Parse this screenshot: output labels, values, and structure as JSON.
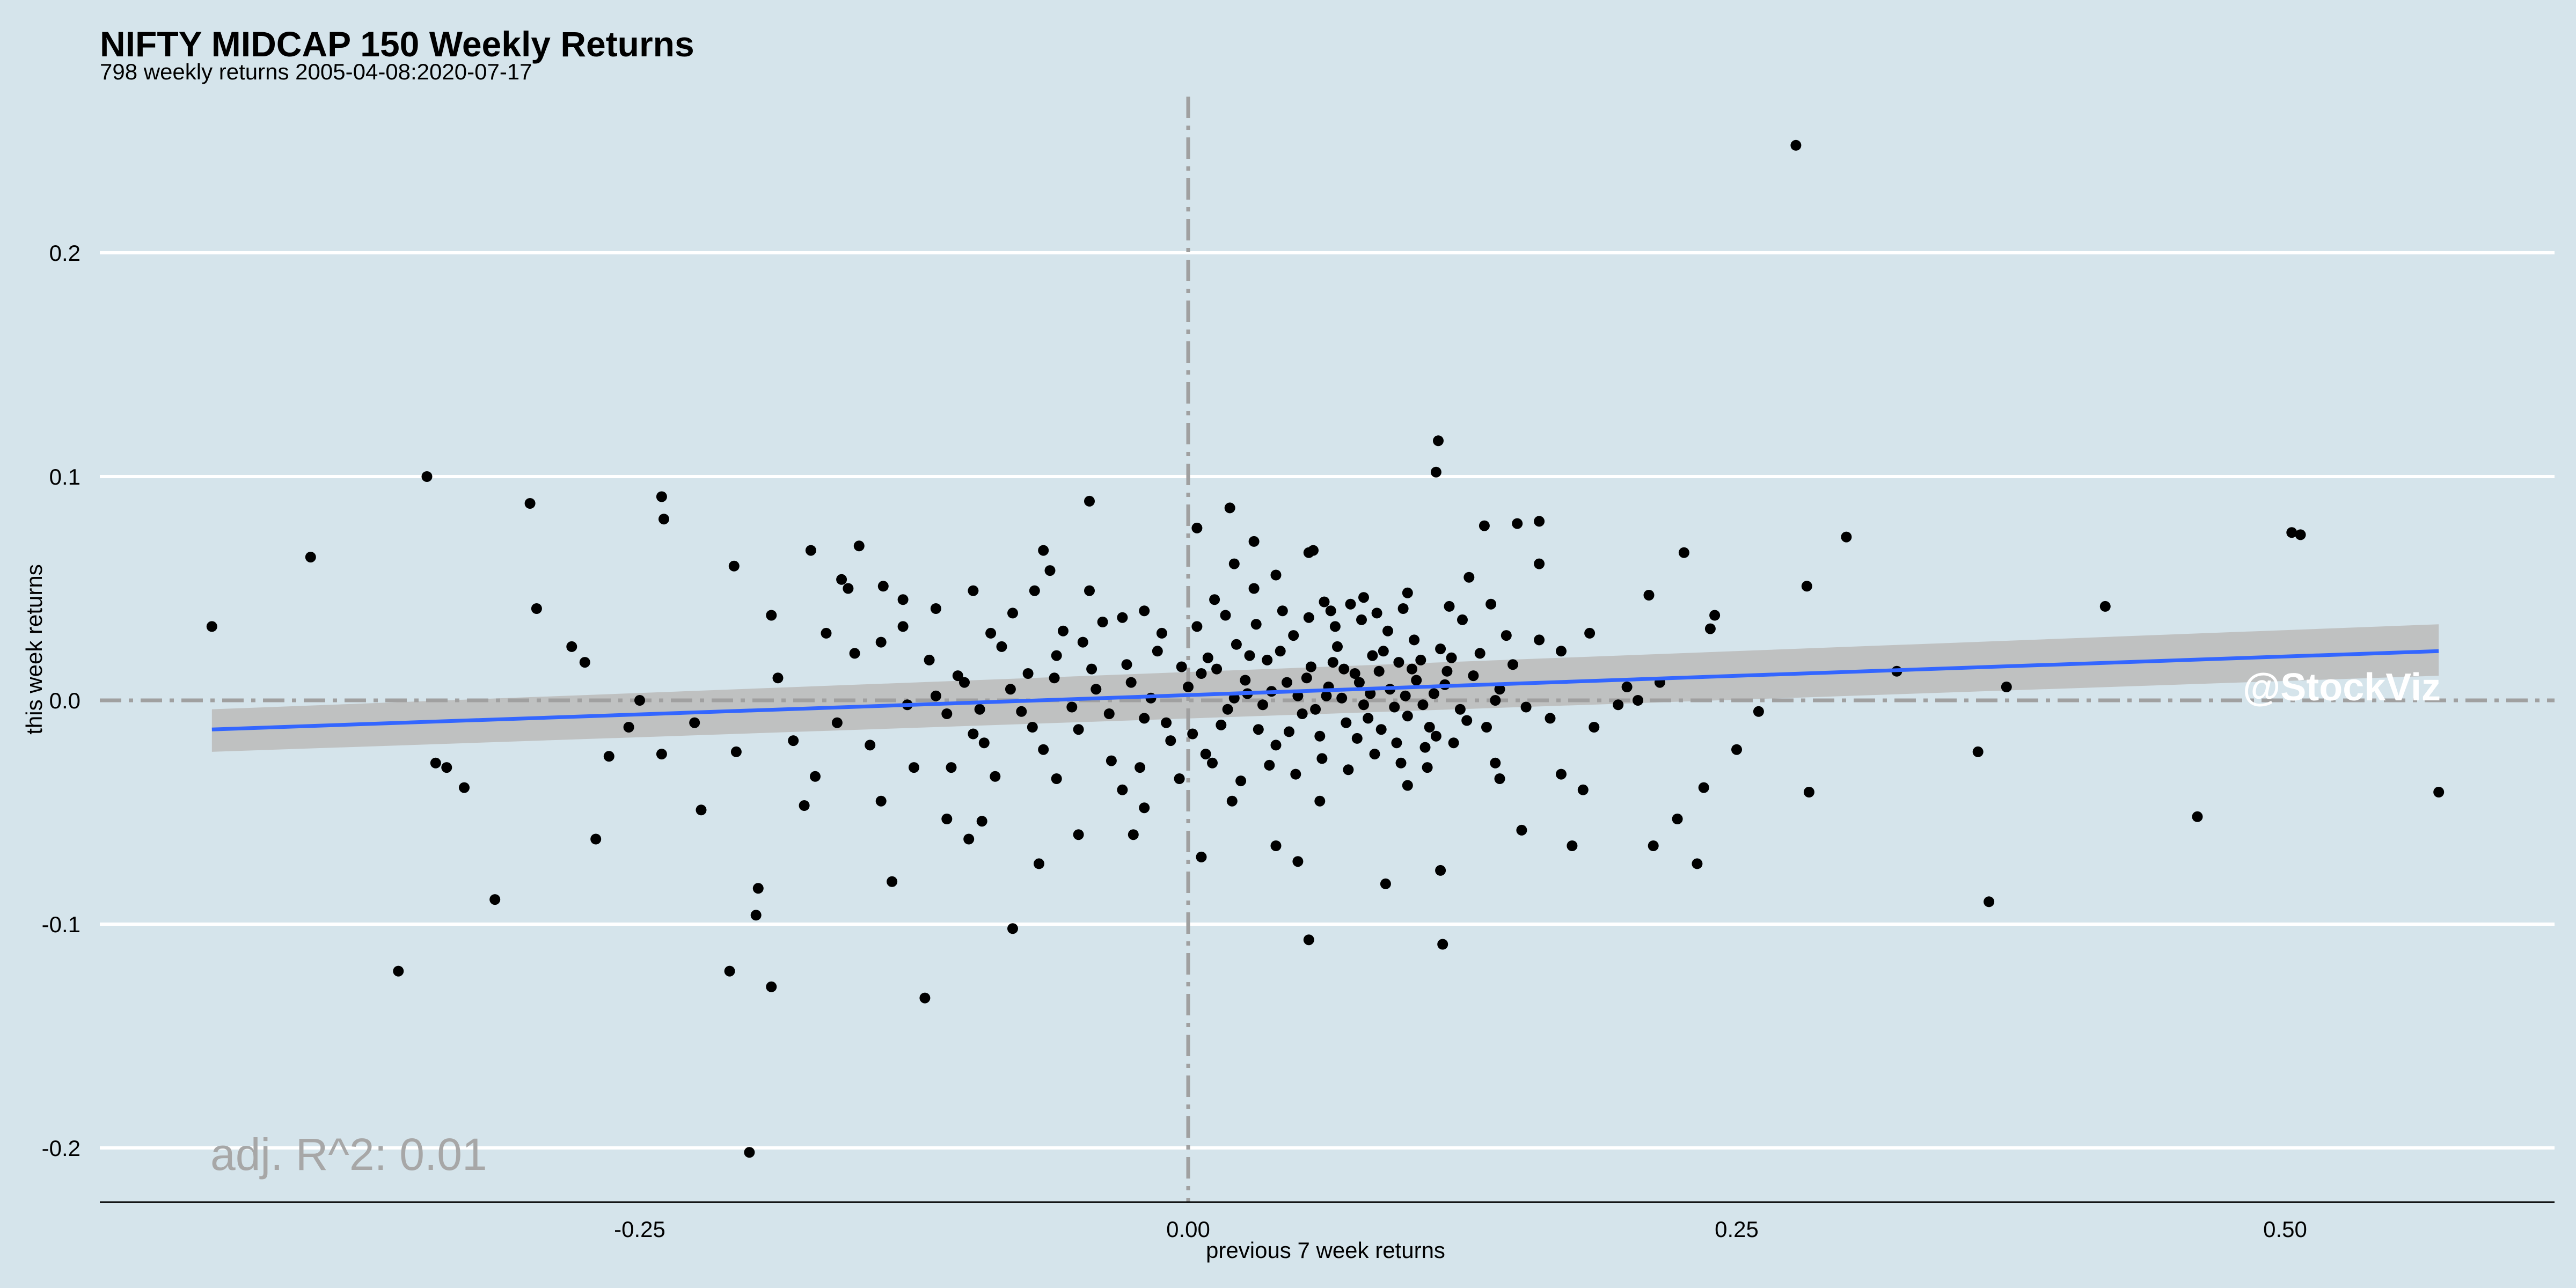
{
  "title": "NIFTY MIDCAP 150 Weekly Returns",
  "subtitle": "798 weekly returns 2005-04-08:2020-07-17",
  "annotation": "adj. R^2: 0.01",
  "watermark": "@StockViz",
  "colors": {
    "background": "#d5e4eb",
    "points": "#000000",
    "regression": "#3366ff",
    "confidence": "#bdbdbd",
    "zero_lines": "#a0a0a0",
    "grid": "#ffffff"
  },
  "chart_data": {
    "type": "scatter",
    "title": "NIFTY MIDCAP 150 Weekly Returns",
    "subtitle": "798 weekly returns 2005-04-08:2020-07-17",
    "xlabel": "previous 7 week returns",
    "ylabel": "this week returns",
    "xlim": [
      -0.5,
      0.62
    ],
    "ylim": [
      -0.225,
      0.27
    ],
    "x_ticks": [
      -0.25,
      0.0,
      0.25,
      0.5
    ],
    "x_tick_labels": [
      "-0.25",
      "0.00",
      "0.25",
      "0.50"
    ],
    "y_ticks": [
      -0.2,
      -0.1,
      0.0,
      0.1,
      0.2
    ],
    "y_tick_labels": [
      "-0.2",
      "-0.1",
      "0.0",
      "0.1",
      "0.2"
    ],
    "grid": "horizontal major lines",
    "reference_lines": {
      "x": 0,
      "y": 0
    },
    "regression": {
      "x_range": [
        -0.445,
        0.57
      ],
      "y_at_start": -0.013,
      "y_at_end": 0.022,
      "ci_start": [
        -0.023,
        -0.004
      ],
      "ci_end": [
        0.011,
        0.034
      ]
    },
    "adj_r2": 0.01,
    "points": [
      [
        0.277,
        0.248
      ],
      [
        -0.347,
        0.1
      ],
      [
        -0.4,
        0.064
      ],
      [
        -0.445,
        0.033
      ],
      [
        -0.3,
        0.088
      ],
      [
        -0.24,
        0.091
      ],
      [
        -0.239,
        0.081
      ],
      [
        0.114,
        0.116
      ],
      [
        0.113,
        0.102
      ],
      [
        0.503,
        0.075
      ],
      [
        0.507,
        0.074
      ],
      [
        0.3,
        0.073
      ],
      [
        -0.045,
        0.089
      ],
      [
        0.019,
        0.086
      ],
      [
        0.004,
        0.077
      ],
      [
        -0.36,
        -0.121
      ],
      [
        -0.316,
        -0.089
      ],
      [
        -0.209,
        -0.121
      ],
      [
        -0.19,
        -0.128
      ],
      [
        -0.2,
        -0.202
      ],
      [
        -0.12,
        -0.133
      ],
      [
        -0.08,
        -0.102
      ],
      [
        0.055,
        -0.107
      ],
      [
        0.116,
        -0.109
      ],
      [
        0.365,
        -0.09
      ],
      [
        0.46,
        -0.052
      ],
      [
        0.57,
        -0.041
      ],
      [
        0.418,
        0.042
      ],
      [
        0.36,
        -0.023
      ],
      [
        0.373,
        0.006
      ],
      [
        -0.196,
        -0.084
      ],
      [
        -0.197,
        -0.096
      ],
      [
        -0.27,
        -0.062
      ],
      [
        -0.222,
        -0.049
      ],
      [
        -0.343,
        -0.028
      ],
      [
        -0.338,
        -0.03
      ],
      [
        -0.33,
        -0.039
      ],
      [
        -0.297,
        0.041
      ],
      [
        -0.281,
        0.024
      ],
      [
        -0.275,
        0.017
      ],
      [
        -0.207,
        0.06
      ],
      [
        -0.172,
        0.067
      ],
      [
        -0.15,
        0.069
      ],
      [
        -0.139,
        0.051
      ],
      [
        -0.187,
        0.01
      ],
      [
        -0.19,
        0.038
      ],
      [
        -0.264,
        -0.025
      ],
      [
        -0.24,
        -0.024
      ],
      [
        -0.206,
        -0.023
      ],
      [
        -0.175,
        -0.047
      ],
      [
        -0.135,
        -0.081
      ],
      [
        0.15,
        0.079
      ],
      [
        0.16,
        0.08
      ],
      [
        0.16,
        0.061
      ],
      [
        0.226,
        0.066
      ],
      [
        0.282,
        0.051
      ],
      [
        0.21,
        0.047
      ],
      [
        0.24,
        0.038
      ],
      [
        0.238,
        0.032
      ],
      [
        0.17,
        0.022
      ],
      [
        0.183,
        0.03
      ],
      [
        0.323,
        0.013
      ],
      [
        0.26,
        -0.005
      ],
      [
        0.25,
        -0.022
      ],
      [
        0.235,
        -0.039
      ],
      [
        0.223,
        -0.053
      ],
      [
        0.232,
        -0.073
      ],
      [
        0.212,
        -0.065
      ],
      [
        0.283,
        -0.041
      ],
      [
        0.175,
        -0.065
      ],
      [
        0.152,
        -0.058
      ],
      [
        0.142,
        -0.035
      ],
      [
        0.09,
        -0.082
      ],
      [
        0.115,
        -0.076
      ],
      [
        0.05,
        -0.072
      ],
      [
        0.04,
        -0.065
      ],
      [
        0.006,
        -0.07
      ],
      [
        -0.025,
        -0.06
      ],
      [
        -0.05,
        -0.06
      ],
      [
        -0.068,
        -0.073
      ],
      [
        -0.094,
        -0.054
      ],
      [
        -0.11,
        -0.053
      ],
      [
        0.021,
        0.061
      ],
      [
        0.03,
        0.071
      ],
      [
        0.055,
        0.066
      ],
      [
        0.057,
        0.067
      ],
      [
        0.135,
        0.078
      ],
      [
        0.128,
        0.055
      ],
      [
        -0.098,
        0.049
      ],
      [
        -0.063,
        0.058
      ],
      [
        -0.066,
        0.067
      ],
      [
        -0.115,
        0.041
      ],
      [
        -0.155,
        0.05
      ],
      [
        -0.158,
        0.054
      ],
      [
        -0.13,
        0.033
      ],
      [
        -0.08,
        0.039
      ],
      [
        -0.045,
        0.049
      ],
      [
        0.1,
        0.048
      ],
      [
        0.08,
        0.046
      ],
      [
        0.065,
        0.04
      ],
      [
        0.04,
        0.056
      ],
      [
        0.03,
        0.05
      ],
      [
        0.012,
        0.045
      ],
      [
        -0.02,
        0.04
      ],
      [
        -0.03,
        0.037
      ],
      [
        0.185,
        -0.012
      ],
      [
        0.2,
        0.006
      ],
      [
        0.205,
        0.0
      ],
      [
        0.215,
        0.008
      ],
      [
        0.196,
        -0.002
      ],
      [
        0.18,
        -0.04
      ],
      [
        0.17,
        -0.033
      ],
      [
        -0.255,
        -0.012
      ],
      [
        -0.25,
        0.0
      ],
      [
        -0.225,
        -0.01
      ],
      [
        -0.16,
        -0.01
      ],
      [
        -0.145,
        -0.02
      ],
      [
        -0.128,
        -0.002
      ],
      [
        -0.115,
        0.002
      ],
      [
        -0.108,
        -0.03
      ],
      [
        -0.098,
        -0.015
      ],
      [
        -0.088,
        -0.034
      ],
      [
        -0.073,
        0.012
      ],
      [
        -0.06,
        0.02
      ],
      [
        -0.05,
        -0.013
      ],
      [
        -0.042,
        0.005
      ],
      [
        -0.035,
        -0.027
      ],
      [
        -0.028,
        0.016
      ],
      [
        -0.02,
        -0.008
      ],
      [
        -0.014,
        0.022
      ],
      [
        -0.008,
        -0.018
      ],
      [
        0.0,
        0.006
      ],
      [
        0.008,
        -0.024
      ],
      [
        0.013,
        0.014
      ],
      [
        0.018,
        -0.004
      ],
      [
        0.022,
        0.025
      ],
      [
        0.027,
        0.003
      ],
      [
        0.032,
        -0.013
      ],
      [
        0.036,
        0.018
      ],
      [
        0.04,
        -0.02
      ],
      [
        0.045,
        0.008
      ],
      [
        0.048,
        0.029
      ],
      [
        0.052,
        -0.006
      ],
      [
        0.056,
        0.015
      ],
      [
        0.06,
        -0.016
      ],
      [
        0.064,
        0.006
      ],
      [
        0.068,
        0.024
      ],
      [
        0.072,
        -0.01
      ],
      [
        0.076,
        0.012
      ],
      [
        0.08,
        -0.002
      ],
      [
        0.084,
        0.02
      ],
      [
        0.088,
        -0.013
      ],
      [
        0.092,
        0.005
      ],
      [
        0.096,
        0.017
      ],
      [
        0.1,
        -0.007
      ],
      [
        0.104,
        0.009
      ],
      [
        0.108,
        -0.021
      ],
      [
        0.112,
        0.003
      ],
      [
        0.118,
        0.013
      ],
      [
        0.124,
        -0.004
      ],
      [
        0.13,
        0.011
      ],
      [
        0.136,
        -0.012
      ],
      [
        0.142,
        0.005
      ],
      [
        0.148,
        0.016
      ],
      [
        0.154,
        -0.003
      ],
      [
        -0.085,
        0.024
      ],
      [
        -0.076,
        -0.005
      ],
      [
        -0.066,
        -0.022
      ],
      [
        -0.057,
        0.031
      ],
      [
        -0.048,
        0.026
      ],
      [
        -0.039,
        0.035
      ],
      [
        -0.03,
        -0.04
      ],
      [
        -0.022,
        -0.03
      ],
      [
        -0.012,
        0.03
      ],
      [
        -0.004,
        -0.035
      ],
      [
        0.004,
        0.033
      ],
      [
        0.011,
        -0.028
      ],
      [
        0.017,
        0.038
      ],
      [
        0.024,
        -0.036
      ],
      [
        0.031,
        0.034
      ],
      [
        0.037,
        -0.029
      ],
      [
        0.043,
        0.04
      ],
      [
        0.049,
        -0.033
      ],
      [
        0.055,
        0.037
      ],
      [
        0.061,
        -0.026
      ],
      [
        0.067,
        0.033
      ],
      [
        0.073,
        -0.031
      ],
      [
        0.079,
        0.036
      ],
      [
        0.085,
        -0.024
      ],
      [
        0.091,
        0.031
      ],
      [
        0.097,
        -0.028
      ],
      [
        0.103,
        0.027
      ],
      [
        0.109,
        -0.03
      ],
      [
        0.115,
        0.023
      ],
      [
        0.121,
        -0.019
      ],
      [
        -0.18,
        -0.018
      ],
      [
        -0.17,
        -0.034
      ],
      [
        -0.165,
        0.03
      ],
      [
        -0.152,
        0.021
      ],
      [
        -0.14,
        0.026
      ],
      [
        -0.125,
        -0.03
      ],
      [
        -0.118,
        0.018
      ],
      [
        -0.105,
        0.011
      ],
      [
        -0.095,
        -0.004
      ],
      [
        -0.09,
        0.03
      ],
      [
        0.16,
        0.027
      ],
      [
        0.165,
        -0.008
      ],
      [
        0.145,
        0.029
      ],
      [
        0.138,
        0.043
      ],
      [
        0.125,
        0.036
      ],
      [
        0.119,
        0.042
      ],
      [
        0.098,
        0.041
      ],
      [
        0.086,
        0.039
      ],
      [
        0.074,
        0.043
      ],
      [
        0.062,
        0.044
      ],
      [
        -0.11,
        -0.006
      ],
      [
        -0.102,
        0.008
      ],
      [
        -0.093,
        -0.019
      ],
      [
        -0.081,
        0.005
      ],
      [
        -0.071,
        -0.012
      ],
      [
        -0.061,
        0.01
      ],
      [
        -0.053,
        -0.003
      ],
      [
        -0.044,
        0.014
      ],
      [
        -0.036,
        -0.006
      ],
      [
        -0.026,
        0.008
      ],
      [
        0.006,
        0.012
      ],
      [
        0.015,
        -0.011
      ],
      [
        0.026,
        0.009
      ],
      [
        0.034,
        -0.002
      ],
      [
        0.042,
        0.022
      ],
      [
        0.05,
        0.002
      ],
      [
        0.058,
        -0.004
      ],
      [
        0.066,
        0.017
      ],
      [
        0.07,
        0.001
      ],
      [
        0.078,
        0.008
      ],
      [
        0.082,
        -0.008
      ],
      [
        0.087,
        0.013
      ],
      [
        0.094,
        -0.003
      ],
      [
        0.099,
        0.002
      ],
      [
        0.106,
        0.018
      ],
      [
        0.11,
        -0.012
      ],
      [
        0.117,
        0.007
      ],
      [
        0.127,
        -0.009
      ],
      [
        0.133,
        0.021
      ],
      [
        0.14,
        0.0
      ],
      [
        -0.003,
        0.015
      ],
      [
        -0.01,
        -0.01
      ],
      [
        -0.017,
        0.001
      ],
      [
        0.002,
        -0.015
      ],
      [
        0.009,
        0.019
      ],
      [
        0.021,
        0.001
      ],
      [
        0.028,
        0.02
      ],
      [
        0.038,
        0.004
      ],
      [
        0.046,
        -0.014
      ],
      [
        0.054,
        0.01
      ],
      [
        0.063,
        0.002
      ],
      [
        0.071,
        0.014
      ],
      [
        0.077,
        -0.017
      ],
      [
        0.083,
        0.003
      ],
      [
        0.089,
        0.022
      ],
      [
        0.095,
        -0.019
      ],
      [
        0.102,
        0.014
      ],
      [
        0.107,
        -0.002
      ],
      [
        0.113,
        -0.016
      ],
      [
        0.12,
        0.019
      ],
      [
        -0.14,
        -0.045
      ],
      [
        -0.1,
        -0.062
      ],
      [
        -0.06,
        -0.035
      ],
      [
        -0.02,
        -0.048
      ],
      [
        0.02,
        -0.045
      ],
      [
        0.06,
        -0.045
      ],
      [
        0.1,
        -0.038
      ],
      [
        0.14,
        -0.028
      ],
      [
        -0.13,
        0.045
      ],
      [
        -0.07,
        0.049
      ]
    ]
  }
}
